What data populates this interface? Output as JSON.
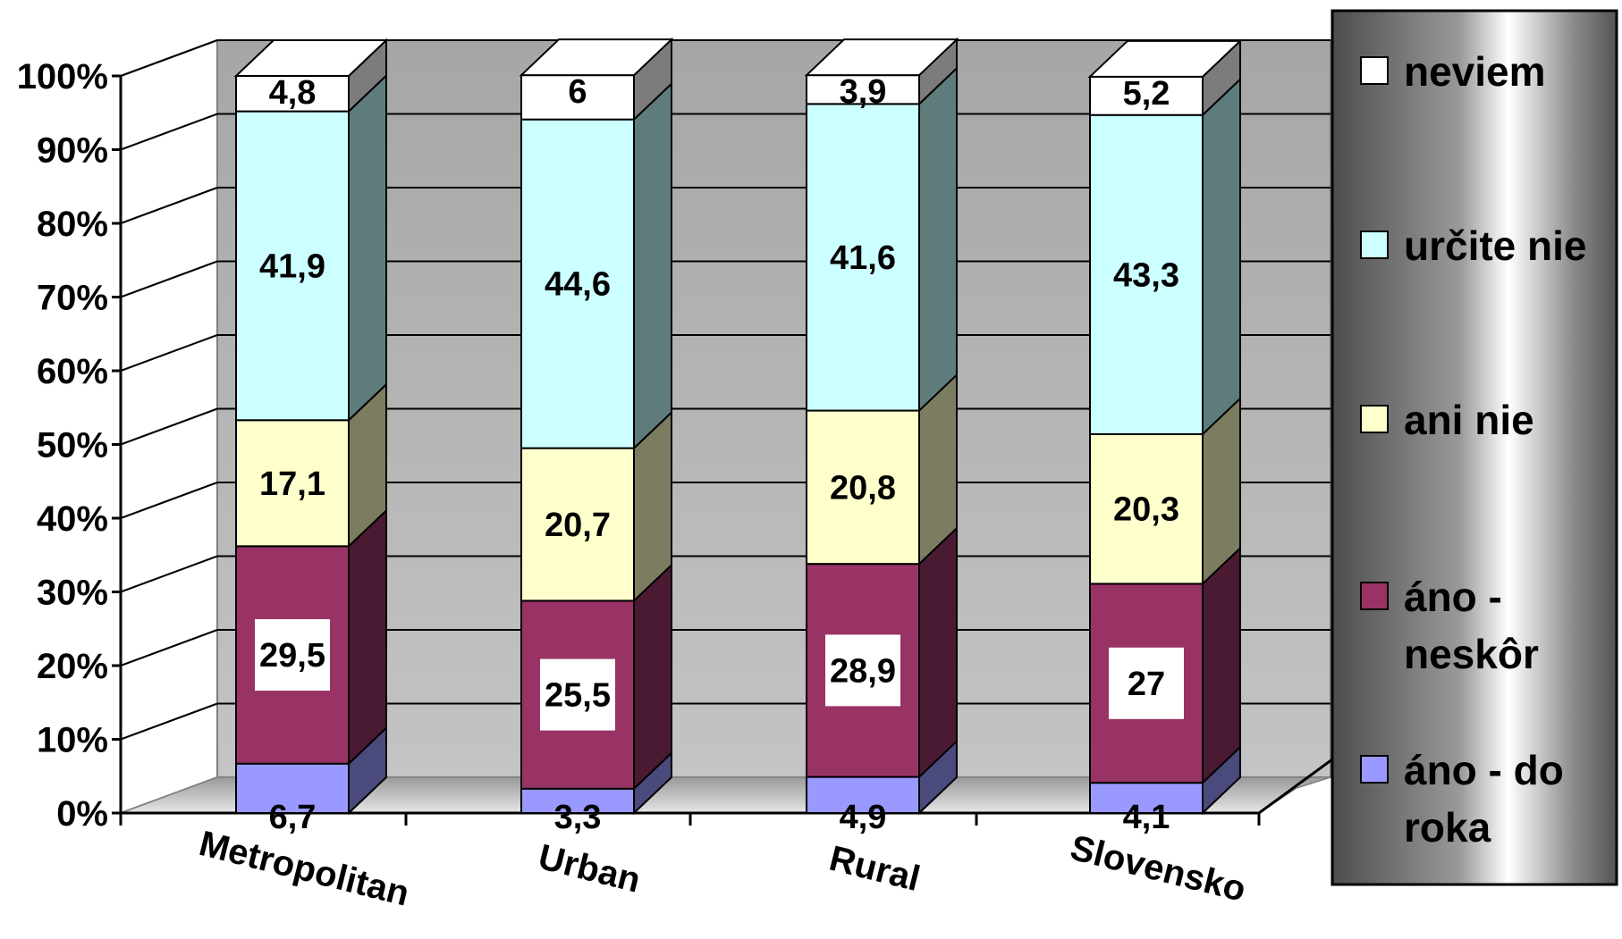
{
  "chart_data": {
    "type": "bar",
    "stacked": true,
    "percent": true,
    "three_d": true,
    "categories": [
      "Metropolitan",
      "Urban",
      "Rural",
      "Slovensko"
    ],
    "series": [
      {
        "name": "áno - do roka",
        "values": [
          6.7,
          3.3,
          4.9,
          4.1
        ],
        "color": "#9999ff",
        "side_color": "#4a4a7c"
      },
      {
        "name": "áno - neskôr",
        "values": [
          29.5,
          25.5,
          28.9,
          27
        ],
        "color": "#993366",
        "side_color": "#4a1a33"
      },
      {
        "name": "ani nie",
        "values": [
          17.1,
          20.7,
          20.8,
          20.3
        ],
        "color": "#ffffcc",
        "side_color": "#7c7c60"
      },
      {
        "name": "určite nie",
        "values": [
          41.9,
          44.6,
          41.6,
          43.3
        ],
        "color": "#ccffff",
        "side_color": "#5f7c7c"
      },
      {
        "name": "neviem",
        "values": [
          4.8,
          6,
          3.9,
          5.2
        ],
        "color": "#ffffff",
        "side_color": "#7c7c7c"
      }
    ],
    "ylim": [
      0,
      100
    ],
    "yticks": [
      "0%",
      "10%",
      "20%",
      "30%",
      "40%",
      "50%",
      "60%",
      "70%",
      "80%",
      "90%",
      "100%"
    ],
    "grid": true,
    "legend": "right",
    "xlabel": "",
    "ylabel": "",
    "title": ""
  }
}
